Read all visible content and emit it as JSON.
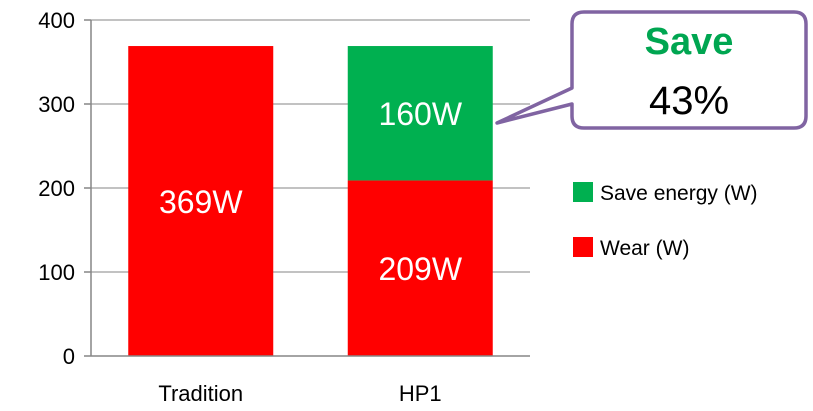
{
  "chart_data": {
    "type": "bar",
    "stacked": true,
    "categories": [
      "Tradition",
      "HP1"
    ],
    "series": [
      {
        "name": "Wear (W)",
        "values": [
          369,
          209
        ],
        "labels": [
          "369W",
          "209W"
        ],
        "color": "#ff0000"
      },
      {
        "name": "Save energy (W)",
        "values": [
          0,
          160
        ],
        "labels": [
          "",
          "160W"
        ],
        "color": "#00b050"
      }
    ],
    "legend_order": [
      1,
      0
    ],
    "legend_position": "right",
    "ylim": [
      0,
      400
    ],
    "yticks": [
      "0",
      "100",
      "200",
      "300",
      "400"
    ],
    "grid": true,
    "callout": {
      "title": "Save",
      "value": "43%",
      "border_color": "#8064a2",
      "title_color": "#00a651"
    }
  }
}
